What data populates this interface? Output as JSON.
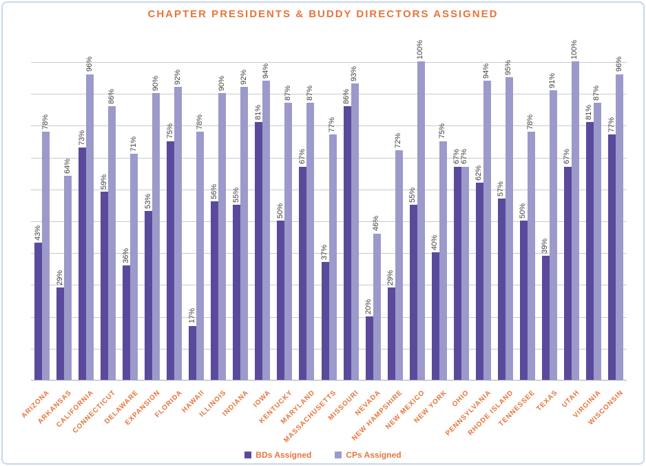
{
  "title": "CHAPTER PRESIDENTS & BUDDY DIRECTORS ASSIGNED",
  "colors": {
    "title_text": "#e8743b",
    "axis_label_text": "#e8743b",
    "legend_text": "#e8743b",
    "bds_bar": "#5a4a9c",
    "cps_bar": "#9b9acb",
    "gridline": "#c9c9c9",
    "axis_line": "#a9a9a9",
    "data_label_text": "#3f3f3f",
    "frame_border": "#c7d7ec"
  },
  "legend": {
    "items": [
      {
        "label": "BDs Assigned",
        "color_key": "bds_bar"
      },
      {
        "label": "CPs Assigned",
        "color_key": "cps_bar"
      }
    ],
    "position": "bottom"
  },
  "chart_data": {
    "type": "bar",
    "title": "CHAPTER PRESIDENTS & BUDDY DIRECTORS ASSIGNED",
    "categories": [
      "ARIZONA",
      "ARKANSAS",
      "CALIFORNIA",
      "CONNECTICUT",
      "DELAWARE",
      "EXPANSION",
      "FLORIDA",
      "HAWAII",
      "ILLINOIS",
      "INDIANA",
      "IOWA",
      "KENTUCKY",
      "MARYLAND",
      "MASSACHUSETTS",
      "MISSOURI",
      "NEVADA",
      "NEW HAMPSHIRE",
      "NEW MEXICO",
      "NEW YORK",
      "OHIO",
      "PENNSYLVANIA",
      "RHODE ISLAND",
      "TENNESSEE",
      "TEXAS",
      "UTAH",
      "VIRGINIA",
      "WISCONSIN"
    ],
    "series": [
      {
        "name": "BDs Assigned",
        "values": [
          43,
          29,
          73,
          59,
          36,
          53,
          75,
          17,
          56,
          55,
          81,
          50,
          67,
          37,
          86,
          20,
          29,
          55,
          40,
          67,
          62,
          57,
          50,
          39,
          67,
          81,
          77
        ]
      },
      {
        "name": "CPs Assigned",
        "values": [
          78,
          64,
          96,
          86,
          71,
          90,
          92,
          78,
          90,
          92,
          94,
          87,
          87,
          77,
          93,
          46,
          72,
          100,
          75,
          67,
          94,
          95,
          78,
          91,
          100,
          87,
          96
        ]
      }
    ],
    "data_label_format": "{value}%",
    "xlabel": "",
    "ylabel": "",
    "ylim": [
      0,
      100
    ],
    "y_gridline_step": 10,
    "grid": true,
    "y_axis_tick_labels_visible": false,
    "legend_position": "bottom"
  }
}
